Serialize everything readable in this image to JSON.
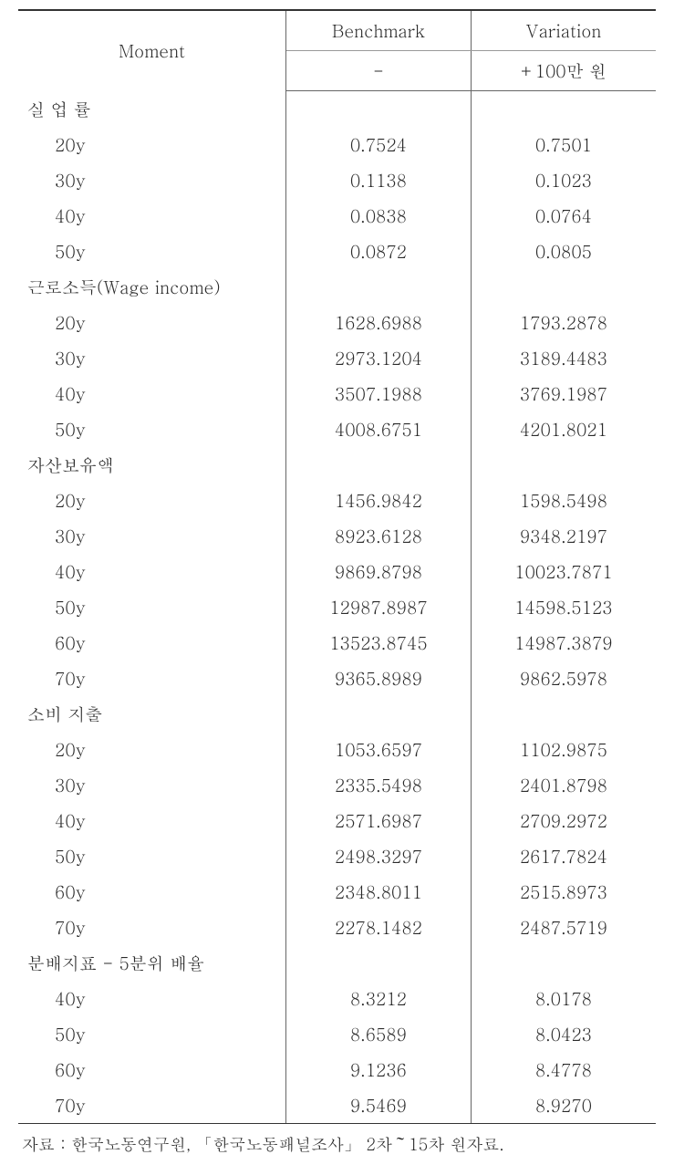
{
  "table": {
    "header": {
      "moment": "Moment",
      "benchmark": "Benchmark",
      "variation": "Variation",
      "benchmark_sub": "-",
      "variation_sub": "+100만 원"
    },
    "groups": [
      {
        "label": "실 업 률",
        "rows": [
          {
            "age": "20y",
            "benchmark": "0.7524",
            "variation": "0.7501"
          },
          {
            "age": "30y",
            "benchmark": "0.1138",
            "variation": "0.1023"
          },
          {
            "age": "40y",
            "benchmark": "0.0838",
            "variation": "0.0764"
          },
          {
            "age": "50y",
            "benchmark": "0.0872",
            "variation": "0.0805"
          }
        ]
      },
      {
        "label": "근로소득(Wage income)",
        "rows": [
          {
            "age": "20y",
            "benchmark": "1628.6988",
            "variation": "1793.2878"
          },
          {
            "age": "30y",
            "benchmark": "2973.1204",
            "variation": "3189.4483"
          },
          {
            "age": "40y",
            "benchmark": "3507.1988",
            "variation": "3769.1987"
          },
          {
            "age": "50y",
            "benchmark": "4008.6751",
            "variation": "4201.8021"
          }
        ]
      },
      {
        "label": "자산보유액",
        "rows": [
          {
            "age": "20y",
            "benchmark": "1456.9842",
            "variation": "1598.5498"
          },
          {
            "age": "30y",
            "benchmark": "8923.6128",
            "variation": "9348.2197"
          },
          {
            "age": "40y",
            "benchmark": "9869.8798",
            "variation": "10023.7871"
          },
          {
            "age": "50y",
            "benchmark": "12987.8987",
            "variation": "14598.5123"
          },
          {
            "age": "60y",
            "benchmark": "13523.8745",
            "variation": "14987.3879"
          },
          {
            "age": "70y",
            "benchmark": "9365.8989",
            "variation": "9862.5978"
          }
        ]
      },
      {
        "label": "소비 지출",
        "rows": [
          {
            "age": "20y",
            "benchmark": "1053.6597",
            "variation": "1102.9875"
          },
          {
            "age": "30y",
            "benchmark": "2335.5498",
            "variation": "2401.8798"
          },
          {
            "age": "40y",
            "benchmark": "2571.6987",
            "variation": "2709.2972"
          },
          {
            "age": "50y",
            "benchmark": "2498.3297",
            "variation": "2617.7824"
          },
          {
            "age": "60y",
            "benchmark": "2348.8011",
            "variation": "2515.8973"
          },
          {
            "age": "70y",
            "benchmark": "2278.1482",
            "variation": "2487.5719"
          }
        ]
      },
      {
        "label": "분배지표 - 5분위 배율",
        "rows": [
          {
            "age": "40y",
            "benchmark": "8.3212",
            "variation": "8.0178"
          },
          {
            "age": "50y",
            "benchmark": "8.6589",
            "variation": "8.0423"
          },
          {
            "age": "60y",
            "benchmark": "9.1236",
            "variation": "8.4778"
          },
          {
            "age": "70y",
            "benchmark": "9.5469",
            "variation": "8.9270"
          }
        ]
      }
    ],
    "source": "자료 : 한국노동연구원, 「한국노동패널조사」 2차～15차 원자료."
  }
}
